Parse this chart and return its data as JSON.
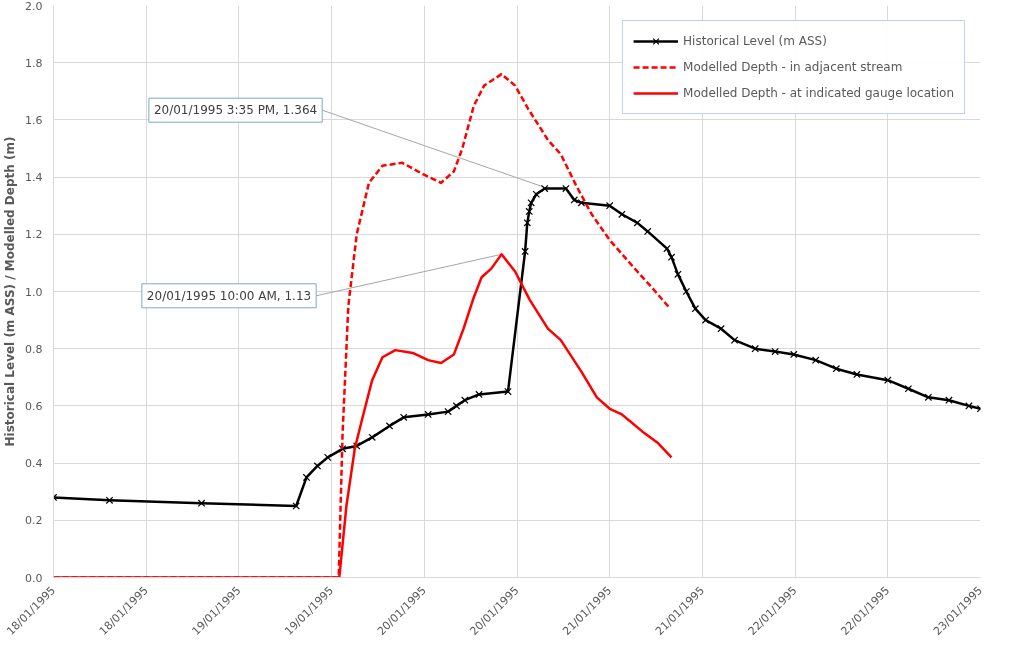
{
  "chart_data": {
    "type": "line",
    "ylabel": "Historical Level (m ASS) / Modelled Depth (m)",
    "xlim": [
      "1995-01-18T00:00",
      "1995-01-23T00:00"
    ],
    "xticks": [
      {
        "value": "1995-01-18T00:00",
        "label": "18/01/1995"
      },
      {
        "value": "1995-01-18T12:00",
        "label": "18/01/1995"
      },
      {
        "value": "1995-01-19T00:00",
        "label": "19/01/1995"
      },
      {
        "value": "1995-01-19T12:00",
        "label": "19/01/1995"
      },
      {
        "value": "1995-01-20T00:00",
        "label": "20/01/1995"
      },
      {
        "value": "1995-01-20T12:00",
        "label": "20/01/1995"
      },
      {
        "value": "1995-01-21T00:00",
        "label": "21/01/1995"
      },
      {
        "value": "1995-01-21T12:00",
        "label": "21/01/1995"
      },
      {
        "value": "1995-01-22T00:00",
        "label": "22/01/1995"
      },
      {
        "value": "1995-01-22T12:00",
        "label": "22/01/1995"
      },
      {
        "value": "1995-01-23T00:00",
        "label": "23/01/1995"
      }
    ],
    "ylim": [
      0,
      2
    ],
    "yticks": [
      {
        "value": 0,
        "label": "0.0"
      },
      {
        "value": 0.2,
        "label": "0.2"
      },
      {
        "value": 0.4,
        "label": "0.4"
      },
      {
        "value": 0.6,
        "label": "0.6"
      },
      {
        "value": 0.8,
        "label": "0.8"
      },
      {
        "value": 1,
        "label": "1.0"
      },
      {
        "value": 1.2,
        "label": "1.2"
      },
      {
        "value": 1.4,
        "label": "1.4"
      },
      {
        "value": 1.6,
        "label": "1.6"
      },
      {
        "value": 1.8,
        "label": "1.8"
      },
      {
        "value": 2,
        "label": "2.0"
      }
    ],
    "grid": true,
    "legend": "top right",
    "series": [
      {
        "name": "Historical Level (m ASS)",
        "color": "#000000",
        "marker": "cross",
        "line_style": "solid",
        "x": [
          "1995-01-18T00:00",
          "1995-01-18T07:15",
          "1995-01-18T19:10",
          "1995-01-19T07:25",
          "1995-01-19T08:45",
          "1995-01-19T10:10",
          "1995-01-19T11:30",
          "1995-01-19T13:25",
          "1995-01-19T15:15",
          "1995-01-19T17:15",
          "1995-01-19T19:30",
          "1995-01-19T21:20",
          "1995-01-20T00:30",
          "1995-01-20T03:05",
          "1995-01-20T04:10",
          "1995-01-20T05:15",
          "1995-01-20T07:05",
          "1995-01-20T10:50",
          "1995-01-20T13:03",
          "1995-01-20T13:20",
          "1995-01-20T13:35",
          "1995-01-20T13:50",
          "1995-01-20T14:30",
          "1995-01-20T15:35",
          "1995-01-20T18:20",
          "1995-01-20T19:25",
          "1995-01-20T20:20",
          "1995-01-21T00:00",
          "1995-01-21T01:35",
          "1995-01-21T03:35",
          "1995-01-21T04:55",
          "1995-01-21T07:25",
          "1995-01-21T08:00",
          "1995-01-21T08:50",
          "1995-01-21T09:55",
          "1995-01-21T11:05",
          "1995-01-21T12:25",
          "1995-01-21T14:25",
          "1995-01-21T16:10",
          "1995-01-21T18:50",
          "1995-01-21T21:25",
          "1995-01-21T23:50",
          "1995-01-22T02:40",
          "1995-01-22T05:20",
          "1995-01-22T08:00",
          "1995-01-22T12:00",
          "1995-01-22T14:40",
          "1995-01-22T17:15",
          "1995-01-22T19:55",
          "1995-01-22T22:30",
          "1995-01-23T00:00"
        ],
        "values": [
          0.28,
          0.27,
          0.26,
          0.25,
          0.35,
          0.39,
          0.42,
          0.45,
          0.46,
          0.49,
          0.53,
          0.56,
          0.57,
          0.58,
          0.6,
          0.62,
          0.64,
          0.65,
          1.14,
          1.24,
          1.28,
          1.31,
          1.34,
          1.36,
          1.36,
          1.32,
          1.31,
          1.3,
          1.27,
          1.24,
          1.21,
          1.15,
          1.12,
          1.06,
          1.0,
          0.94,
          0.9,
          0.87,
          0.83,
          0.8,
          0.79,
          0.78,
          0.76,
          0.73,
          0.71,
          0.69,
          0.66,
          0.63,
          0.62,
          0.6,
          0.59
        ]
      },
      {
        "name": "Modelled Depth - in adjacent stream",
        "color": "#ff0000",
        "marker": "none",
        "line_style": "dashed",
        "x": [
          "1995-01-18T00:00",
          "1995-01-19T12:55",
          "1995-01-19T13:25",
          "1995-01-19T14:10",
          "1995-01-19T15:15",
          "1995-01-19T16:50",
          "1995-01-19T18:35",
          "1995-01-19T21:10",
          "1995-01-19T23:50",
          "1995-01-20T02:10",
          "1995-01-20T03:50",
          "1995-01-20T04:55",
          "1995-01-20T06:25",
          "1995-01-20T07:45",
          "1995-01-20T10:00",
          "1995-01-20T11:45",
          "1995-01-20T13:25",
          "1995-01-20T16:00",
          "1995-01-20T17:40",
          "1995-01-20T19:40",
          "1995-01-20T21:40",
          "1995-01-21T00:00",
          "1995-01-21T02:55",
          "1995-01-21T05:35",
          "1995-01-21T07:50"
        ],
        "values": [
          0,
          0,
          0.5,
          0.95,
          1.2,
          1.38,
          1.44,
          1.45,
          1.41,
          1.38,
          1.42,
          1.5,
          1.65,
          1.72,
          1.76,
          1.72,
          1.64,
          1.53,
          1.48,
          1.37,
          1.27,
          1.18,
          1.09,
          1.01,
          0.94
        ]
      },
      {
        "name": "Modelled Depth - at indicated gauge location",
        "color": "#ff0000",
        "marker": "none",
        "line_style": "solid",
        "x": [
          "1995-01-18T00:00",
          "1995-01-19T13:00",
          "1995-01-19T13:55",
          "1995-01-19T15:00",
          "1995-01-19T15:55",
          "1995-01-19T17:15",
          "1995-01-19T18:35",
          "1995-01-19T20:15",
          "1995-01-19T22:30",
          "1995-01-20T00:30",
          "1995-01-20T02:10",
          "1995-01-20T03:50",
          "1995-01-20T05:05",
          "1995-01-20T06:25",
          "1995-01-20T07:25",
          "1995-01-20T08:40",
          "1995-01-20T10:00",
          "1995-01-20T11:45",
          "1995-01-20T13:40",
          "1995-01-20T16:00",
          "1995-01-20T17:40",
          "1995-01-20T20:20",
          "1995-01-20T22:20",
          "1995-01-21T00:00",
          "1995-01-21T01:35",
          "1995-01-21T04:15",
          "1995-01-21T06:15",
          "1995-01-21T08:00"
        ],
        "values": [
          0,
          0,
          0.25,
          0.45,
          0.55,
          0.69,
          0.77,
          0.795,
          0.785,
          0.76,
          0.75,
          0.78,
          0.87,
          0.98,
          1.05,
          1.08,
          1.13,
          1.07,
          0.97,
          0.87,
          0.83,
          0.72,
          0.63,
          0.59,
          0.57,
          0.51,
          0.47,
          0.42
        ]
      }
    ],
    "annotations": [
      {
        "text": "20/01/1995 3:35 PM, 1.364",
        "x": "1995-01-20T15:35",
        "y": 1.364
      },
      {
        "text": "20/01/1995 10:00 AM, 1.13",
        "x": "1995-01-20T10:00",
        "y": 1.13
      }
    ]
  }
}
